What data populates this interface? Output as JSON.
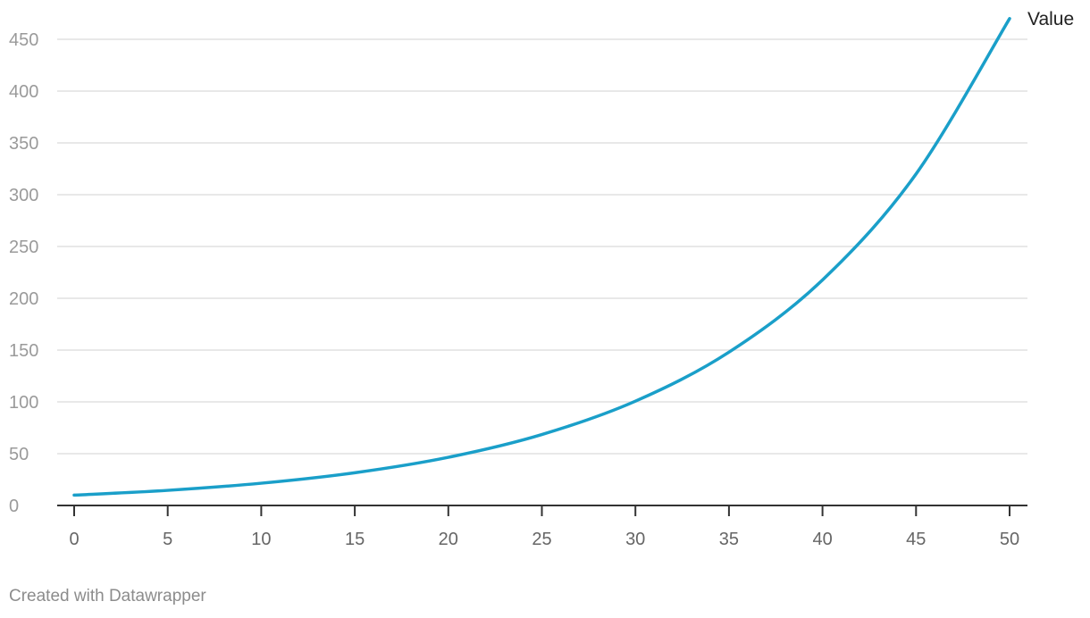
{
  "chart_data": {
    "type": "line",
    "title": "",
    "xlabel": "",
    "ylabel": "",
    "xlim": [
      0,
      50
    ],
    "ylim": [
      0,
      450
    ],
    "grid": true,
    "x_ticks": [
      "0",
      "5",
      "10",
      "15",
      "20",
      "25",
      "30",
      "35",
      "40",
      "45",
      "50"
    ],
    "y_ticks": [
      "0",
      "50",
      "100",
      "150",
      "200",
      "250",
      "300",
      "350",
      "400",
      "450"
    ],
    "x": [
      0,
      5,
      10,
      15,
      20,
      25,
      30,
      35,
      40,
      45,
      50
    ],
    "series": [
      {
        "name": "Value",
        "color": "#1a9fc9",
        "values": [
          10,
          14.6,
          21.5,
          31.6,
          46.5,
          68.5,
          100.7,
          148,
          217.7,
          320,
          470
        ]
      }
    ]
  },
  "footer": {
    "credit": "Created with Datawrapper"
  }
}
